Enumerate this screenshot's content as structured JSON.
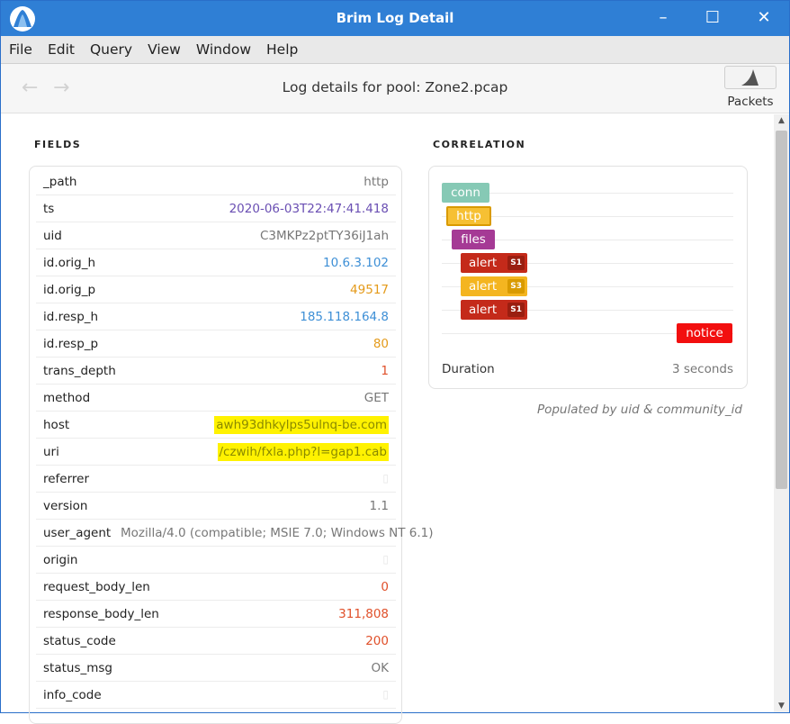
{
  "window": {
    "title": "Brim Log Detail",
    "minimize": "–",
    "maximize": "☐",
    "close": "✕"
  },
  "menu": [
    "File",
    "Edit",
    "Query",
    "View",
    "Window",
    "Help"
  ],
  "toolbar": {
    "back": "←",
    "forward": "→",
    "title": "Log details for pool: Zone2.pcap",
    "packets_label": "Packets"
  },
  "fields": {
    "heading": "FIELDS",
    "rows": [
      {
        "name": "_path",
        "value": "http",
        "color": "#777777"
      },
      {
        "name": "ts",
        "value": "2020-06-03T22:47:41.418",
        "color": "#6a4fb3"
      },
      {
        "name": "uid",
        "value": "C3MKPz2ptTY36iJ1ah",
        "color": "#777777"
      },
      {
        "name": "id.orig_h",
        "value": "10.6.3.102",
        "color": "#3d8fd6"
      },
      {
        "name": "id.orig_p",
        "value": "49517",
        "color": "#e49a1a"
      },
      {
        "name": "id.resp_h",
        "value": "185.118.164.8",
        "color": "#3d8fd6"
      },
      {
        "name": "id.resp_p",
        "value": "80",
        "color": "#e49a1a"
      },
      {
        "name": "trans_depth",
        "value": "1",
        "color": "#e0502a"
      },
      {
        "name": "method",
        "value": "GET",
        "color": "#777777"
      },
      {
        "name": "host",
        "value": "awh93dhkylps5ulnq-be.com",
        "color": "#8a8a00",
        "highlight": true
      },
      {
        "name": "uri",
        "value": "/czwih/fxla.php?l=gap1.cab",
        "color": "#8a8a00",
        "highlight": true
      },
      {
        "name": "referrer",
        "value": "▯",
        "color": "#e6e6e6",
        "empty": true
      },
      {
        "name": "version",
        "value": "1.1",
        "color": "#777777"
      },
      {
        "name": "user_agent",
        "value": "Mozilla/4.0 (compatible; MSIE 7.0; Windows NT 6.1)",
        "color": "#777777",
        "ua": true
      },
      {
        "name": "origin",
        "value": "▯",
        "color": "#e6e6e6",
        "empty": true
      },
      {
        "name": "request_body_len",
        "value": "0",
        "color": "#e0502a"
      },
      {
        "name": "response_body_len",
        "value": "311,808",
        "color": "#e0502a"
      },
      {
        "name": "status_code",
        "value": "200",
        "color": "#e0502a"
      },
      {
        "name": "status_msg",
        "value": "OK",
        "color": "#777777"
      },
      {
        "name": "info_code",
        "value": "▯",
        "color": "#e6e6e6",
        "empty": true
      }
    ]
  },
  "correlation": {
    "heading": "CORRELATION",
    "items": [
      {
        "label": "conn",
        "color": "#86c9b5"
      },
      {
        "label": "http",
        "color": "#f6c033",
        "border": "#d99a00"
      },
      {
        "label": "files",
        "color": "#a53a95"
      },
      {
        "label": "alert",
        "badge": "S1",
        "color": "#c42a1a",
        "badge_color": "#9a1e10"
      },
      {
        "label": "alert",
        "badge": "S3",
        "color": "#f4b520",
        "badge_color": "#d99a00"
      },
      {
        "label": "alert",
        "badge": "S1",
        "color": "#c42a1a",
        "badge_color": "#9a1e10"
      },
      {
        "label": "notice",
        "color": "#f20f0f"
      }
    ],
    "duration_label": "Duration",
    "duration_value": "3 seconds",
    "populated_note": "Populated by uid & community_id"
  }
}
